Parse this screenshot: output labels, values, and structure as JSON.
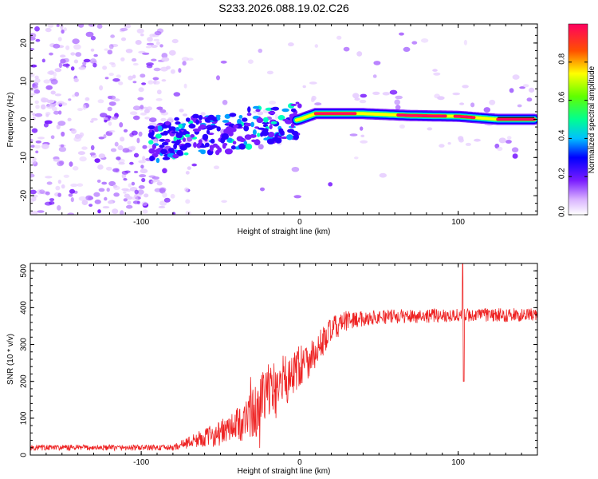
{
  "title": "S233.2026.088.19.02.C26",
  "chart_data": [
    {
      "type": "heatmap",
      "xlabel": "Height of straight line (km)",
      "ylabel": "Frequency (Hz)",
      "xlim": [
        -170,
        150
      ],
      "ylim": [
        -25,
        25
      ],
      "xticks": [
        -100,
        0,
        100
      ],
      "yticks": [
        -20,
        -10,
        0,
        10,
        20
      ],
      "colorbar": {
        "label": "Normalized spectral amplitude",
        "range": [
          0,
          1
        ],
        "ticks": [
          "0.0",
          "0.2",
          "0.4",
          "0.6",
          "0.8"
        ],
        "tick_values": [
          0.0,
          0.2,
          0.4,
          0.6,
          0.8
        ]
      },
      "ridge": [
        {
          "x": -90,
          "f": -6
        },
        {
          "x": -70,
          "f": -4
        },
        {
          "x": -50,
          "f": -4
        },
        {
          "x": -30,
          "f": -2
        },
        {
          "x": -10,
          "f": -1
        },
        {
          "x": 0,
          "f": 0
        },
        {
          "x": 10,
          "f": 1.5
        },
        {
          "x": 40,
          "f": 1.5
        },
        {
          "x": 70,
          "f": 1
        },
        {
          "x": 100,
          "f": 0.8
        },
        {
          "x": 125,
          "f": 0
        },
        {
          "x": 148,
          "f": 0
        }
      ]
    },
    {
      "type": "line",
      "xlabel": "Height of straight line (km)",
      "ylabel": "SNR (10 * v/v)",
      "xlim": [
        -170,
        150
      ],
      "ylim": [
        0,
        520
      ],
      "xticks": [
        -100,
        0,
        100
      ],
      "yticks": [
        0,
        100,
        200,
        300,
        400,
        500
      ],
      "trend": [
        {
          "x": -170,
          "y": 20
        },
        {
          "x": -80,
          "y": 20
        },
        {
          "x": -70,
          "y": 35
        },
        {
          "x": -50,
          "y": 60
        },
        {
          "x": -40,
          "y": 80
        },
        {
          "x": -30,
          "y": 110
        },
        {
          "x": -20,
          "y": 160
        },
        {
          "x": -10,
          "y": 200
        },
        {
          "x": 0,
          "y": 240
        },
        {
          "x": 10,
          "y": 280
        },
        {
          "x": 20,
          "y": 340
        },
        {
          "x": 30,
          "y": 365
        },
        {
          "x": 50,
          "y": 375
        },
        {
          "x": 100,
          "y": 380
        },
        {
          "x": 150,
          "y": 380
        }
      ],
      "noise": [
        {
          "x": -170,
          "amp": 8
        },
        {
          "x": -80,
          "amp": 8
        },
        {
          "x": -60,
          "amp": 25
        },
        {
          "x": -40,
          "amp": 45
        },
        {
          "x": -20,
          "amp": 90
        },
        {
          "x": 0,
          "amp": 60
        },
        {
          "x": 20,
          "amp": 35
        },
        {
          "x": 40,
          "amp": 20
        },
        {
          "x": 150,
          "amp": 18
        }
      ],
      "spike": {
        "x": 103,
        "max": 520,
        "min": 200
      }
    }
  ]
}
